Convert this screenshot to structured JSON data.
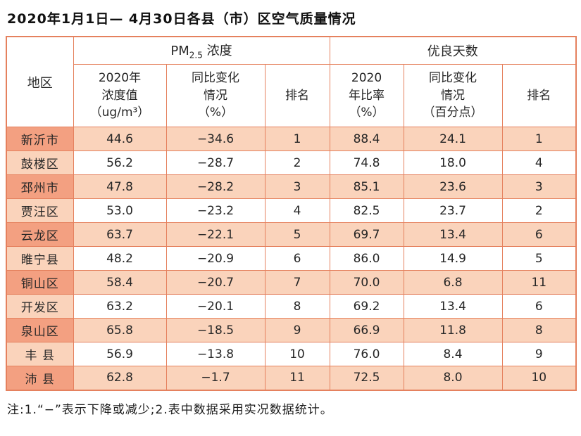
{
  "title": "2020年1月1日— 4月30日各县（市）区空气质量情况",
  "table": {
    "header": {
      "region": "地区",
      "pm_prefix": "PM",
      "pm_sub": "2.5",
      "pm_suffix": " 浓度",
      "good_group": "优良天数",
      "sub": [
        "2020年\n浓度值\n（ug/m³）",
        "同比变化\n情况\n（%）",
        "排名",
        "2020\n年比率\n（%）",
        "同比变化\n情况\n（百分点）",
        "排名"
      ]
    },
    "rows": [
      {
        "region": "新沂市",
        "pm_value": "44.6",
        "pm_change": "−34.6",
        "pm_rank": "1",
        "good_ratio": "88.4",
        "good_change": "24.1",
        "good_rank": "1"
      },
      {
        "region": "鼓楼区",
        "pm_value": "56.2",
        "pm_change": "−28.7",
        "pm_rank": "2",
        "good_ratio": "74.8",
        "good_change": "18.0",
        "good_rank": "4"
      },
      {
        "region": "邳州市",
        "pm_value": "47.8",
        "pm_change": "−28.2",
        "pm_rank": "3",
        "good_ratio": "85.1",
        "good_change": "23.6",
        "good_rank": "3"
      },
      {
        "region": "贾汪区",
        "pm_value": "53.0",
        "pm_change": "−23.2",
        "pm_rank": "4",
        "good_ratio": "82.5",
        "good_change": "23.7",
        "good_rank": "2"
      },
      {
        "region": "云龙区",
        "pm_value": "63.7",
        "pm_change": "−22.1",
        "pm_rank": "5",
        "good_ratio": "69.7",
        "good_change": "13.4",
        "good_rank": "6"
      },
      {
        "region": "睢宁县",
        "pm_value": "48.2",
        "pm_change": "−20.9",
        "pm_rank": "6",
        "good_ratio": "86.0",
        "good_change": "14.9",
        "good_rank": "5"
      },
      {
        "region": "铜山区",
        "pm_value": "58.4",
        "pm_change": "−20.7",
        "pm_rank": "7",
        "good_ratio": "70.0",
        "good_change": "6.8",
        "good_rank": "11"
      },
      {
        "region": "开发区",
        "pm_value": "63.2",
        "pm_change": "−20.1",
        "pm_rank": "8",
        "good_ratio": "69.2",
        "good_change": "13.4",
        "good_rank": "6"
      },
      {
        "region": "泉山区",
        "pm_value": "65.8",
        "pm_change": "−18.5",
        "pm_rank": "9",
        "good_ratio": "66.9",
        "good_change": "11.8",
        "good_rank": "8"
      },
      {
        "region": "丰 县",
        "pm_value": "56.9",
        "pm_change": "−13.8",
        "pm_rank": "10",
        "good_ratio": "76.0",
        "good_change": "8.4",
        "good_rank": "9"
      },
      {
        "region": "沛 县",
        "pm_value": "62.8",
        "pm_change": "−1.7",
        "pm_rank": "11",
        "good_ratio": "72.5",
        "good_change": "8.0",
        "good_rank": "10"
      }
    ]
  },
  "note": "注:1.“−”表示下降或减少;2.表中数据采用实况数据统计。",
  "colors": {
    "border": "#e5815e",
    "dark_salmon": "#f3a081",
    "light_peach": "#fad3bb"
  }
}
